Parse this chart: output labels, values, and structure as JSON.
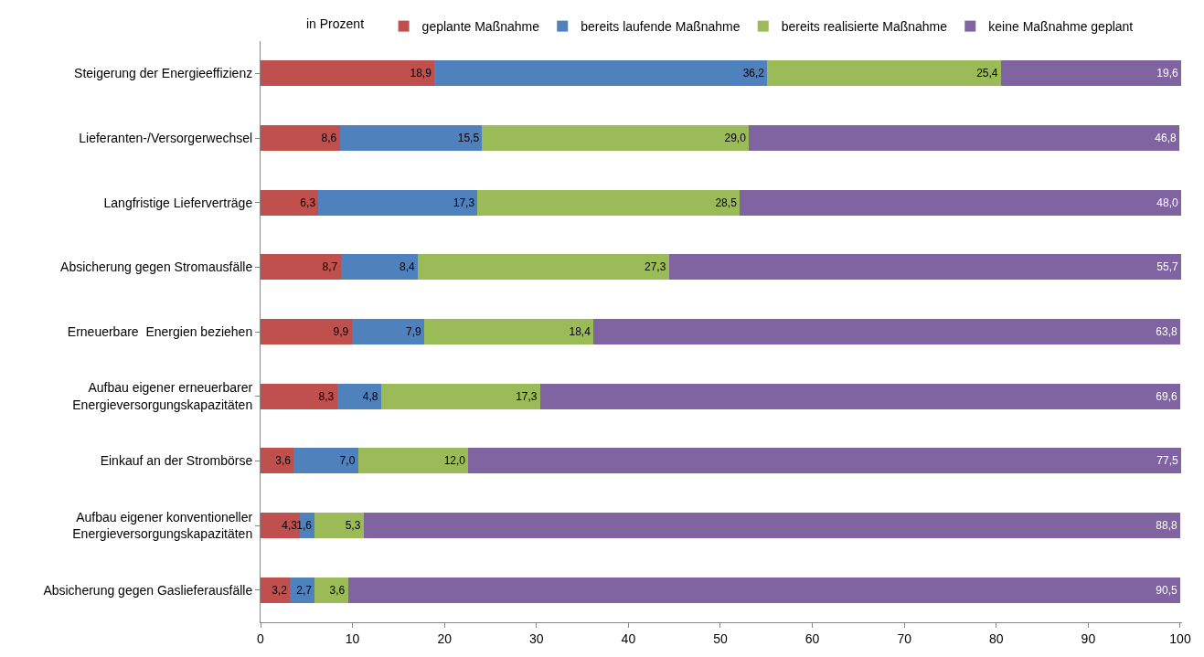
{
  "chart_data": {
    "type": "bar",
    "orientation": "horizontal",
    "stacked": true,
    "legend": "top",
    "legend_title": "in Prozent",
    "categories": [
      "Steigerung der Energieeffizienz",
      "Lieferanten-/Versorgerwechsel",
      "Langfristige Lieferverträge",
      "Absicherung gegen Stromausfälle",
      "Erneuerbare  Energien beziehen",
      "Aufbau eigener erneuerbarer\nEnergieversorgungskapazitäten",
      "Einkauf an der Strombörse",
      "Aufbau eigener konventioneller\nEnergieversorgungskapazitäten",
      "Absicherung gegen Gaslieferausfälle"
    ],
    "xlim": [
      0,
      100.2
    ],
    "xticks": [
      0,
      10,
      20,
      30,
      40,
      50,
      60,
      70,
      80,
      90,
      100
    ],
    "series": [
      {
        "name": "geplante Maßnahme",
        "color": "#c0504d",
        "values": [
          18.9,
          8.6,
          6.3,
          8.7,
          9.9,
          8.3,
          3.6,
          4.3,
          3.2
        ],
        "value_labels": [
          "18,9",
          "8,6",
          "6,3",
          "8,7",
          "9,9",
          "8,3",
          "3,6",
          "4,3",
          "3,2"
        ]
      },
      {
        "name": "bereits laufende Maßnahme",
        "color": "#4f81bd",
        "values": [
          36.2,
          15.5,
          17.3,
          8.4,
          7.9,
          4.8,
          7.0,
          1.6,
          2.7
        ],
        "value_labels": [
          "36,2",
          "15,5",
          "17,3",
          "8,4",
          "7,9",
          "4,8",
          "7,0",
          "1,6",
          "2,7"
        ]
      },
      {
        "name": "bereits realisierte Maßnahme",
        "color": "#9bbb59",
        "values": [
          25.4,
          29.0,
          28.5,
          27.3,
          18.4,
          17.3,
          12.0,
          5.3,
          3.6
        ],
        "value_labels": [
          "25,4",
          "29,0",
          "28,5",
          "27,3",
          "18,4",
          "17,3",
          "12,0",
          "5,3",
          "3,6"
        ]
      },
      {
        "name": "keine Maßnahme geplant",
        "color": "#8064a2",
        "values": [
          19.6,
          46.8,
          48.0,
          55.7,
          63.8,
          69.6,
          77.5,
          88.8,
          90.5
        ],
        "value_labels": [
          "19,6",
          "46,8",
          "48,0",
          "55,7",
          "63,8",
          "69,6",
          "77,5",
          "88,8",
          "90,5"
        ]
      }
    ]
  }
}
